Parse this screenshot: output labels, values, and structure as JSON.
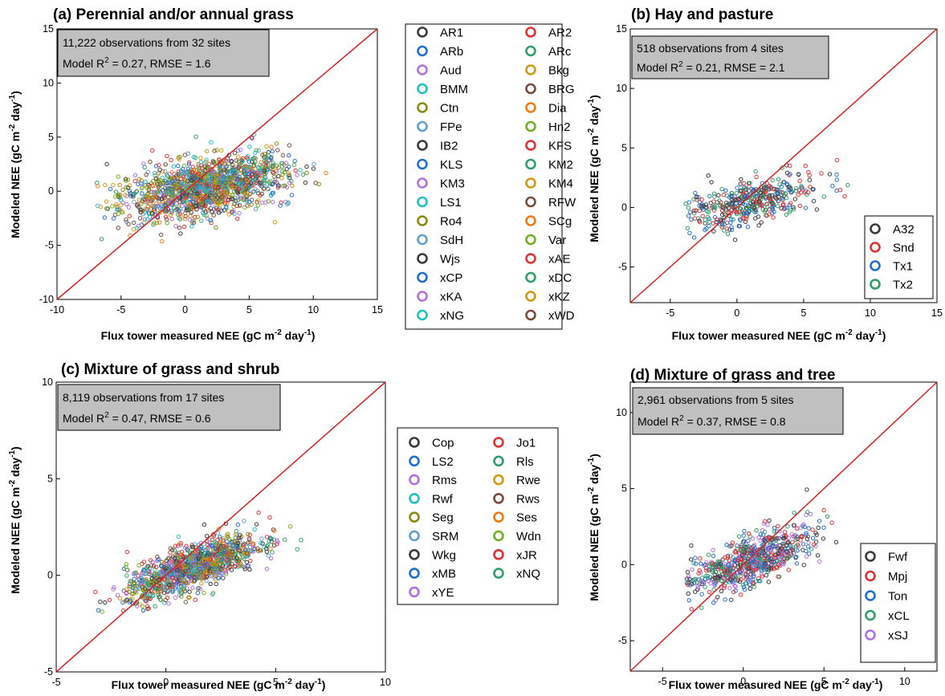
{
  "colors": {
    "palette": [
      "#3a3a3a",
      "#e03030",
      "#1f6fd0",
      "#2e9e6a",
      "#b070e0",
      "#d09a10",
      "#20c0c0",
      "#7a4a3a",
      "#8a8a10",
      "#f07a10",
      "#5fa0d0",
      "#70b020"
    ],
    "identity_line": "#d82020",
    "stat_box": "#c0c0c0"
  },
  "panels": [
    {
      "id": "a",
      "title": "(a) Perennial and/or annual grass",
      "xlabel": "Flux tower measured NEE (gC m-2 day-1)",
      "ylabel": "Modeled NEE (gC m-2 day-1)",
      "stat_line1": "11,222 observations from 32 sites",
      "stat_line2": "Model R2 = 0.27, RMSE = 1.6"
    },
    {
      "id": "b",
      "title": "(b) Hay and pasture",
      "xlabel": "Flux tower measured NEE (gC m-2 day-1)",
      "ylabel": "Modeled NEE (gC m-2 day-1)",
      "stat_line1": "518 observations from 4 sites",
      "stat_line2": "Model R2 = 0.21, RMSE = 2.1"
    },
    {
      "id": "c",
      "title": "(c) Mixture of grass and shrub",
      "xlabel": "Flux tower measured NEE (gC m-2 day-1)",
      "ylabel": "Modeled NEE (gC m-2 day-1)",
      "stat_line1": "8,119 observations from 17 sites",
      "stat_line2": "Model R2 = 0.47, RMSE = 0.6"
    },
    {
      "id": "d",
      "title": "(d) Mixture of grass and tree",
      "xlabel": "Flux tower measured NEE (gC m-2 day-1)",
      "ylabel": "Modeled NEE (gC m-2 day-1)",
      "stat_line1": "2,961 observations from 5 sites",
      "stat_line2": "Model R2 = 0.37, RMSE = 0.8"
    }
  ],
  "chart_data": [
    {
      "type": "scatter",
      "title": "(a) Perennial and/or annual grass",
      "xlabel": "Flux tower measured NEE (gC m-2 day-1)",
      "ylabel": "Modeled NEE (gC m-2 day-1)",
      "xlim": [
        -10,
        15
      ],
      "ylim": [
        -10,
        15
      ],
      "xticks": [
        -10,
        -5,
        0,
        5,
        10,
        15
      ],
      "yticks": [
        -10,
        -5,
        0,
        5,
        10,
        15
      ],
      "identity_line": true,
      "legend_position": "right-outside",
      "legend": [
        "AR1",
        "AR2",
        "ARb",
        "ARc",
        "Aud",
        "Bkg",
        "BMM",
        "BRG",
        "Ctn",
        "Dia",
        "FPe",
        "Hn2",
        "IB2",
        "KFS",
        "KLS",
        "KM2",
        "KM3",
        "KM4",
        "LS1",
        "RFW",
        "Ro4",
        "SCg",
        "SdH",
        "Var",
        "Wjs",
        "xAE",
        "xCP",
        "xDC",
        "xKA",
        "xKZ",
        "xNG",
        "xWD"
      ],
      "cloud": {
        "x_mean": 1.5,
        "x_sd": 3.2,
        "y_mean": 0.3,
        "y_sd": 1.6,
        "slope": 0.2,
        "n_points_shown": 1500,
        "x_range": [
          -7,
          14.5
        ]
      }
    },
    {
      "type": "scatter",
      "title": "(b) Hay and pasture",
      "xlabel": "Flux tower measured NEE (gC m-2 day-1)",
      "ylabel": "Modeled NEE (gC m-2 day-1)",
      "xlim": [
        -8,
        15
      ],
      "ylim": [
        -8,
        15
      ],
      "xticks": [
        -5,
        0,
        5,
        10,
        15
      ],
      "yticks": [
        -5,
        0,
        5,
        10,
        15
      ],
      "identity_line": true,
      "legend_position": "bottom-right",
      "legend": [
        "A32",
        "Snd",
        "Tx1",
        "Tx2"
      ],
      "cloud": {
        "x_mean": 1.2,
        "x_sd": 2.5,
        "y_mean": 0.5,
        "y_sd": 1.2,
        "slope": 0.25,
        "n_points_shown": 420,
        "x_range": [
          -4,
          11.5
        ]
      }
    },
    {
      "type": "scatter",
      "title": "(c) Mixture of grass and shrub",
      "xlabel": "Flux tower measured NEE (gC m-2 day-1)",
      "ylabel": "Modeled NEE (gC m-2 day-1)",
      "xlim": [
        -5,
        10
      ],
      "ylim": [
        -5,
        10
      ],
      "xticks": [
        -5,
        0,
        5,
        10
      ],
      "yticks": [
        -5,
        0,
        5,
        10
      ],
      "identity_line": true,
      "legend_position": "right-outside",
      "legend": [
        "Cop",
        "Jo1",
        "LS2",
        "Rls",
        "Rms",
        "Rwe",
        "Rwf",
        "Rws",
        "Seg",
        "Ses",
        "SRM",
        "Wdn",
        "Wkg",
        "xJR",
        "xMB",
        "xNQ",
        "xYE"
      ],
      "cloud": {
        "x_mean": 1.2,
        "x_sd": 1.5,
        "y_mean": 0.4,
        "y_sd": 0.7,
        "slope": 0.4,
        "n_points_shown": 1200,
        "x_range": [
          -3.8,
          6.2
        ]
      }
    },
    {
      "type": "scatter",
      "title": "(d) Mixture of grass and tree",
      "xlabel": "Flux tower measured NEE (gC m-2 day-1)",
      "ylabel": "Modeled NEE (gC m-2 day-1)",
      "xlim": [
        -7,
        12
      ],
      "ylim": [
        -7,
        12
      ],
      "xticks": [
        -5,
        0,
        5,
        10
      ],
      "yticks": [
        -5,
        0,
        5,
        10
      ],
      "identity_line": true,
      "legend_position": "bottom-right",
      "legend": [
        "Fwf",
        "Mpj",
        "Ton",
        "xCL",
        "xSJ"
      ],
      "cloud": {
        "x_mean": 0.5,
        "x_sd": 1.8,
        "y_mean": 0.3,
        "y_sd": 1.0,
        "slope": 0.35,
        "n_points_shown": 700,
        "x_range": [
          -3.5,
          11
        ]
      }
    }
  ]
}
